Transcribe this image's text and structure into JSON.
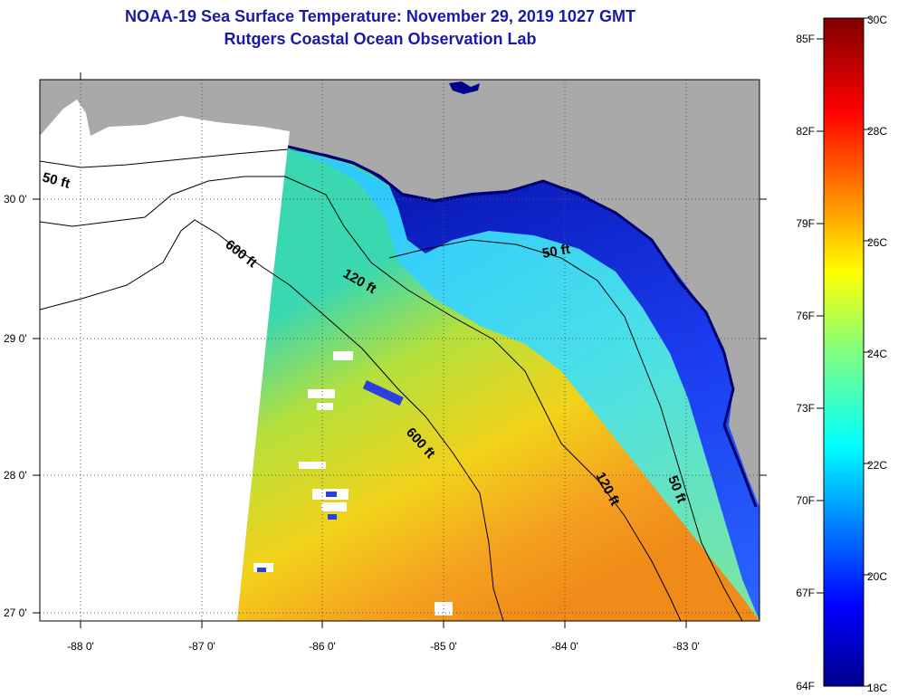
{
  "header": {
    "title": "NOAA-19 Sea Surface Temperature:  November 29, 2019 1027 GMT",
    "subtitle": "Rutgers Coastal Ocean Observation Lab"
  },
  "map": {
    "lon_labels": [
      "-88 0'",
      "-87 0'",
      "-86 0'",
      "-85 0'",
      "-84 0'",
      "-83 0'"
    ],
    "lat_labels": [
      "30 0'",
      "29 0'",
      "28 0'",
      "27 0'"
    ],
    "lon_range": [
      -88.35,
      -82.45
    ],
    "lat_range": [
      26.95,
      30.85
    ],
    "grid": true,
    "contour_labels": [
      {
        "text": "50 ft"
      },
      {
        "text": "600 ft"
      },
      {
        "text": "120 ft"
      },
      {
        "text": "50 ft"
      },
      {
        "text": "600 ft"
      },
      {
        "text": "120 ft"
      },
      {
        "text": "50 ft"
      }
    ],
    "colors": {
      "land": "#a9a9a9",
      "no_data": "#ffffff"
    }
  },
  "colorbar": {
    "fahrenheit_labels": [
      "85F",
      "82F",
      "79F",
      "76F",
      "73F",
      "70F",
      "67F",
      "64F"
    ],
    "celsius_labels": [
      "30C",
      "28C",
      "26C",
      "24C",
      "22C",
      "20C",
      "18C"
    ],
    "range_c": [
      18,
      30
    ],
    "colormap": "jet"
  }
}
